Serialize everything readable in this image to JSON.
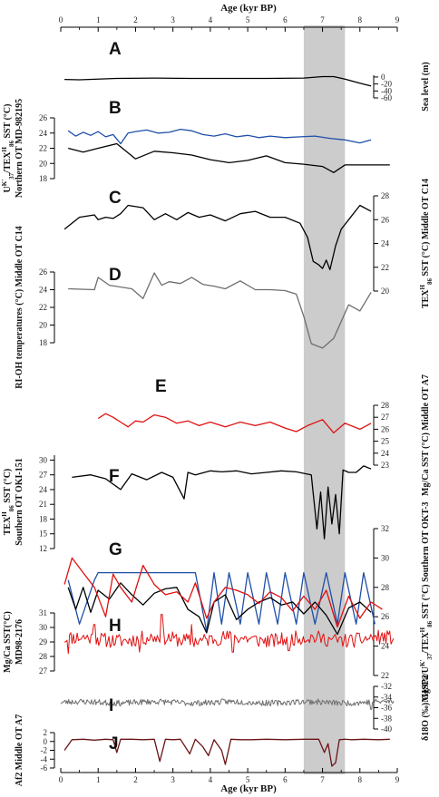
{
  "chart_data": {
    "type": "line",
    "x_axis": {
      "title": "Age (kyr BP)",
      "range": [
        0,
        9
      ],
      "ticks": [
        "0",
        "1",
        "2",
        "3",
        "4",
        "5",
        "6",
        "7",
        "8",
        "9"
      ]
    },
    "highlight": {
      "x_range": [
        6.5,
        7.6
      ],
      "color": "#cccccc"
    },
    "colors": {
      "black": "#000000",
      "blue": "#1f4fa8",
      "red": "#e01010",
      "gray": "#6e6e6e",
      "brown": "#6b1414"
    },
    "panels": [
      {
        "label": "A",
        "axis_side": "right",
        "axis_title": "Sea level (m)",
        "ylim": [
          -60,
          5
        ],
        "ticks": [
          "0",
          "-20",
          "-40",
          "-60"
        ],
        "series": [
          {
            "color": "black",
            "x": [
              0.1,
              0.5,
              1.5,
              2.5,
              3.5,
              4.5,
              5.5,
              6.5,
              7.0,
              7.3,
              7.6,
              8.0,
              8.3
            ],
            "y": [
              -7,
              -8,
              -4,
              -3,
              -4,
              -4,
              -4,
              -3,
              1,
              1,
              -6,
              -18,
              -26
            ]
          }
        ]
      },
      {
        "label": "B",
        "axis_side": "left",
        "axis_title": [
          "U^K'_37/TEX^H_86 SST (°C)",
          "Northern OT MD-982195"
        ],
        "ylim": [
          18,
          26
        ],
        "ticks": [
          "18",
          "20",
          "22",
          "24",
          "26"
        ],
        "series": [
          {
            "color": "blue",
            "x": [
              0.2,
              0.4,
              0.6,
              0.8,
              1.0,
              1.2,
              1.4,
              1.6,
              1.8,
              2.0,
              2.3,
              2.6,
              2.9,
              3.2,
              3.5,
              3.8,
              4.1,
              4.4,
              4.7,
              5.0,
              5.3,
              5.6,
              6.0,
              6.4,
              6.8,
              7.2,
              7.6,
              8.0,
              8.3
            ],
            "y": [
              24.3,
              23.6,
              24.1,
              23.7,
              24.2,
              23.5,
              23.8,
              22.6,
              24.0,
              24.2,
              24.4,
              24.0,
              24.1,
              24.5,
              24.3,
              23.8,
              23.6,
              23.9,
              23.5,
              23.7,
              23.4,
              23.6,
              23.4,
              23.5,
              23.6,
              23.3,
              23.1,
              22.7,
              23.1
            ]
          },
          {
            "color": "black",
            "x": [
              0.2,
              0.6,
              1.0,
              1.5,
              2.0,
              2.5,
              3.0,
              3.5,
              4.0,
              4.5,
              5.0,
              5.5,
              6.0,
              6.5,
              7.0,
              7.3,
              7.6,
              8.0,
              8.5,
              8.8
            ],
            "y": [
              22.0,
              21.5,
              22.0,
              22.6,
              20.6,
              21.6,
              21.4,
              21.1,
              20.5,
              20.1,
              20.4,
              21.0,
              20.1,
              19.9,
              19.6,
              18.8,
              19.8,
              19.8,
              19.8,
              19.8
            ]
          }
        ]
      },
      {
        "label": "C",
        "axis_side": "right",
        "axis_title": "TEX^H_86 SST (°C) Middle OT C14",
        "ylim": [
          20,
          28
        ],
        "ticks": [
          "20",
          "22",
          "24",
          "26",
          "28"
        ],
        "series": [
          {
            "color": "black",
            "x": [
              0.1,
              0.5,
              0.9,
              1.0,
              1.2,
              1.4,
              1.6,
              1.8,
              2.2,
              2.5,
              2.8,
              3.1,
              3.4,
              3.7,
              4.0,
              4.4,
              4.8,
              5.2,
              5.6,
              6.0,
              6.4,
              6.6,
              6.75,
              6.9,
              7.0,
              7.1,
              7.2,
              7.35,
              7.5,
              7.7,
              8.0,
              8.3
            ],
            "y": [
              25.2,
              26.2,
              26.4,
              26.0,
              26.2,
              26.1,
              26.5,
              27.2,
              27.0,
              26.0,
              26.5,
              26.0,
              26.6,
              26.2,
              26.4,
              25.9,
              26.5,
              26.7,
              26.2,
              26.2,
              25.7,
              24.5,
              22.5,
              22.2,
              21.9,
              22.6,
              21.8,
              23.8,
              25.2,
              26.0,
              27.2,
              26.7
            ]
          }
        ]
      },
      {
        "label": "D",
        "axis_side": "left",
        "axis_title": [
          "RI-OH temperatures (°C) Middle OT C14"
        ],
        "ylim": [
          18,
          26
        ],
        "ticks": [
          "18",
          "20",
          "22",
          "24",
          "26"
        ],
        "series": [
          {
            "color": "gray",
            "x": [
              0.2,
              0.9,
              1.0,
              1.3,
              1.9,
              2.2,
              2.5,
              2.7,
              2.9,
              3.2,
              3.5,
              3.8,
              4.1,
              4.4,
              4.8,
              5.2,
              5.6,
              6.0,
              6.3,
              6.5,
              6.7,
              7.0,
              7.3,
              7.7,
              8.0,
              8.3
            ],
            "y": [
              24.1,
              24.0,
              25.4,
              24.5,
              24.1,
              23.0,
              25.9,
              24.5,
              24.9,
              24.7,
              25.4,
              24.6,
              24.4,
              24.1,
              25.0,
              24.0,
              24.0,
              23.9,
              23.5,
              21.0,
              17.9,
              17.4,
              18.5,
              22.3,
              21.6,
              23.7
            ]
          }
        ]
      },
      {
        "label": "E",
        "axis_side": "right",
        "axis_title": "Mg/Ca SST (°C) Middle OT A7",
        "ylim": [
          23,
          28
        ],
        "ticks": [
          "23",
          "24",
          "25",
          "26",
          "27",
          "28"
        ],
        "series": [
          {
            "color": "red",
            "x": [
              1.0,
              1.2,
              1.4,
              1.6,
              1.8,
              2.0,
              2.2,
              2.5,
              2.8,
              3.1,
              3.4,
              3.7,
              4.0,
              4.4,
              4.8,
              5.2,
              5.6,
              6.0,
              6.3,
              6.6,
              7.0,
              7.3,
              7.6,
              8.0,
              8.3
            ],
            "y": [
              26.9,
              27.3,
              27.0,
              26.6,
              26.2,
              26.7,
              26.6,
              27.2,
              27.0,
              26.5,
              26.7,
              26.3,
              26.6,
              26.2,
              26.6,
              26.3,
              26.6,
              26.1,
              25.8,
              26.3,
              26.8,
              25.7,
              26.5,
              26.0,
              26.5
            ]
          }
        ]
      },
      {
        "label": "F",
        "axis_side": "left",
        "axis_title": [
          "TEX^H_86 SST (°C)",
          "Southern OT OKI-151"
        ],
        "ylim": [
          12,
          31
        ],
        "ticks": [
          "12",
          "15",
          "18",
          "21",
          "24",
          "27",
          "30"
        ],
        "series": [
          {
            "color": "black",
            "x": [
              0.3,
              0.8,
              1.2,
              1.6,
              1.9,
              2.3,
              2.7,
              3.0,
              3.3,
              3.4,
              3.6,
              4.0,
              4.3,
              4.7,
              5.1,
              5.5,
              5.9,
              6.3,
              6.7,
              6.85,
              6.95,
              7.05,
              7.15,
              7.25,
              7.35,
              7.45,
              7.55,
              7.7,
              7.9,
              8.1,
              8.3
            ],
            "y": [
              26.5,
              27.0,
              26.2,
              24.0,
              27.2,
              26.0,
              27.5,
              26.5,
              22.1,
              27.5,
              27.0,
              27.8,
              27.6,
              27.8,
              27.2,
              27.5,
              27.8,
              27.6,
              27.0,
              16.0,
              23.5,
              14.0,
              24.5,
              17.0,
              23.0,
              15.0,
              28.0,
              27.5,
              27.5,
              28.8,
              28.2
            ]
          }
        ]
      },
      {
        "label": "G",
        "axis_side": "right",
        "axis_title": "Mg/Ca/U^K'_37/TEX^H_86 SST (°C) Southern OT OKT-3",
        "ylim": [
          22,
          32
        ],
        "ticks": [
          "22",
          "24",
          "26",
          "28",
          "30",
          "32"
        ],
        "series": [
          {
            "color": "blue",
            "x": [
              0.2,
              0.5,
              0.9,
              1.0,
              3.6,
              3.9,
              4.1,
              4.3,
              4.5,
              4.8,
              5.0,
              5.3,
              5.5,
              5.8,
              6.0,
              6.3,
              6.5,
              6.8,
              7.1,
              7.4,
              7.6,
              7.9,
              8.1,
              8.4
            ],
            "y": [
              28.5,
              25.5,
              28.5,
              29.0,
              29.0,
              25.0,
              29.0,
              25.5,
              29.0,
              25.5,
              29.0,
              25.5,
              29.0,
              25.5,
              29.0,
              25.5,
              29.0,
              25.5,
              29.0,
              25.5,
              29.0,
              25.5,
              29.0,
              25.5
            ]
          },
          {
            "color": "black",
            "x": [
              0.2,
              0.4,
              0.6,
              0.8,
              1.0,
              1.3,
              1.6,
              1.9,
              2.2,
              2.5,
              2.8,
              3.1,
              3.4,
              3.7,
              3.9,
              4.1,
              4.4,
              4.7,
              5.0,
              5.3,
              5.6,
              5.9,
              6.2,
              6.5,
              6.8,
              7.1,
              7.4,
              7.7,
              8.0,
              8.3
            ],
            "y": [
              28.0,
              26.5,
              28.0,
              26.3,
              27.8,
              27.2,
              28.3,
              27.5,
              26.8,
              27.6,
              27.9,
              28.0,
              26.5,
              26.0,
              24.9,
              27.0,
              27.5,
              25.8,
              26.5,
              27.0,
              27.3,
              26.8,
              27.0,
              26.2,
              27.0,
              26.1,
              24.8,
              26.6,
              27.0,
              26.3
            ]
          },
          {
            "color": "red",
            "x": [
              0.1,
              0.3,
              0.6,
              0.9,
              1.2,
              1.4,
              1.6,
              1.9,
              2.2,
              2.5,
              2.8,
              3.1,
              3.4,
              3.6,
              3.9,
              4.1,
              4.4,
              4.7,
              5.0,
              5.3,
              5.6,
              5.9,
              6.2,
              6.5,
              6.8,
              7.1,
              7.4,
              7.7,
              8.0,
              8.3,
              8.6
            ],
            "y": [
              28.2,
              30.0,
              29.0,
              28.0,
              26.0,
              28.9,
              28.0,
              27.0,
              29.5,
              28.2,
              27.5,
              27.7,
              27.0,
              28.3,
              25.9,
              27.0,
              28.0,
              27.8,
              27.5,
              26.9,
              27.7,
              27.3,
              26.4,
              27.4,
              26.5,
              27.8,
              25.3,
              27.4,
              25.9,
              27.0,
              26.5
            ]
          }
        ]
      },
      {
        "label": "H",
        "axis_side": "left",
        "axis_title": [
          "Mg/Ca SST(°C)",
          "MD98-2176"
        ],
        "ylim": [
          27,
          31
        ],
        "ticks": [
          "27",
          "28",
          "29",
          "30",
          "31"
        ],
        "series": [
          {
            "color": "red",
            "generator": "noisy",
            "seed": 11,
            "n": 260,
            "base": 29.2,
            "amp": 0.5,
            "x_range": [
              0.1,
              8.9
            ],
            "spikes": [
              [
                2.7,
                30.9
              ],
              [
                0.9,
                30.2
              ],
              [
                3.5,
                30.2
              ],
              [
                2.1,
                28.3
              ],
              [
                0.2,
                28.2
              ],
              [
                6.1,
                28.4
              ],
              [
                4.6,
                28.3
              ]
            ]
          }
        ]
      },
      {
        "label": "I",
        "axis_side": "right",
        "axis_title": "δ18O (‰) GISP2",
        "ylim": [
          -40,
          -32
        ],
        "ticks": [
          "-32",
          "-34",
          "-36",
          "-38",
          "-40"
        ],
        "series": [
          {
            "color": "gray",
            "generator": "noisy",
            "seed": 23,
            "n": 380,
            "base": -35.0,
            "amp": 0.55,
            "x_range": [
              0.0,
              8.9
            ],
            "spikes": [
              [
                8.3,
                -36.3
              ]
            ]
          }
        ]
      },
      {
        "label": "J",
        "axis_side": "left",
        "axis_title": [
          "Af2 Middle OT A7"
        ],
        "ylim": [
          -6,
          2
        ],
        "ticks": [
          "2",
          "0",
          "-2",
          "-4",
          "-6"
        ],
        "series": [
          {
            "color": "brown",
            "x": [
              0.1,
              0.3,
              0.6,
              0.9,
              1.2,
              1.4,
              1.5,
              1.6,
              1.9,
              2.2,
              2.5,
              2.65,
              2.8,
              3.0,
              3.2,
              3.45,
              3.6,
              3.8,
              3.95,
              4.1,
              4.3,
              4.4,
              4.55,
              4.8,
              5.1,
              5.5,
              6.0,
              6.5,
              6.9,
              7.05,
              7.15,
              7.25,
              7.35,
              7.45,
              7.6,
              7.8,
              8.1,
              8.5,
              8.8
            ],
            "y": [
              -2.0,
              0.4,
              0.5,
              0.3,
              0.5,
              0.4,
              -2.5,
              0.5,
              0.5,
              0.4,
              0.5,
              -4.5,
              0.5,
              0.4,
              0.5,
              -2.8,
              0.5,
              -1.2,
              -3.2,
              0.4,
              -2.0,
              -5.2,
              0.5,
              0.4,
              0.4,
              0.5,
              0.4,
              0.5,
              0.5,
              -2.5,
              -0.5,
              -5.6,
              -4.8,
              0.4,
              0.5,
              0.4,
              0.5,
              0.4,
              0.5
            ]
          }
        ]
      }
    ]
  }
}
